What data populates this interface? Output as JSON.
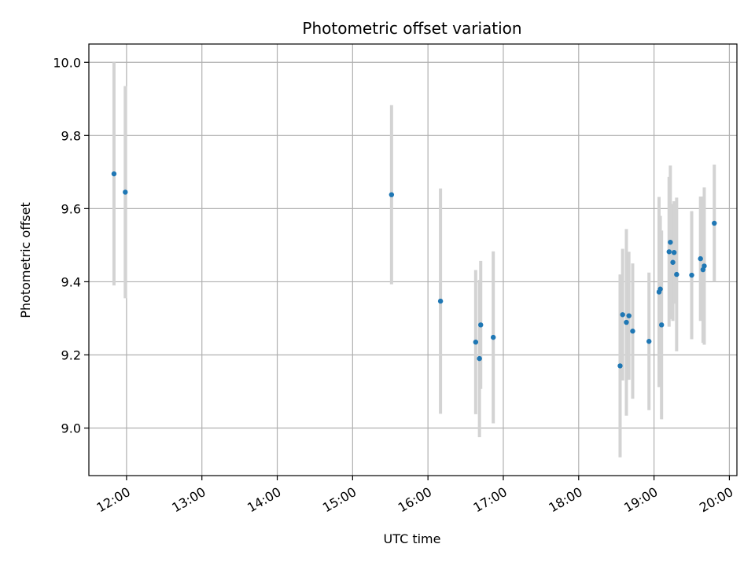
{
  "chart_data": {
    "type": "scatter",
    "title": "Photometric offset variation",
    "xlabel": "UTC time",
    "ylabel": "Photometric offset",
    "x_tick_labels": [
      "12:00",
      "13:00",
      "14:00",
      "15:00",
      "16:00",
      "17:00",
      "18:00",
      "19:00",
      "20:00"
    ],
    "y_tick_labels": [
      "9.0",
      "9.2",
      "9.4",
      "9.6",
      "9.8",
      "10.0"
    ],
    "xlim": [
      "11:30",
      "20:06"
    ],
    "ylim": [
      8.87,
      10.05
    ],
    "grid": true,
    "colors": {
      "point": "#1f77b4",
      "errorbar": "#d3d3d3",
      "grid": "#b0b0b0"
    },
    "points": [
      {
        "x": "11:50",
        "y": 9.695,
        "err": 0.305
      },
      {
        "x": "11:59",
        "y": 9.645,
        "err": 0.29
      },
      {
        "x": "15:31",
        "y": 9.638,
        "err": 0.245
      },
      {
        "x": "16:10",
        "y": 9.347,
        "err": 0.308
      },
      {
        "x": "16:38",
        "y": 9.235,
        "err": 0.197
      },
      {
        "x": "16:41",
        "y": 9.19,
        "err": 0.215
      },
      {
        "x": "16:42",
        "y": 9.282,
        "err": 0.175
      },
      {
        "x": "16:52",
        "y": 9.248,
        "err": 0.235
      },
      {
        "x": "18:33",
        "y": 9.17,
        "err": 0.25
      },
      {
        "x": "18:35",
        "y": 9.31,
        "err": 0.18
      },
      {
        "x": "18:38",
        "y": 9.289,
        "err": 0.255
      },
      {
        "x": "18:40",
        "y": 9.307,
        "err": 0.175
      },
      {
        "x": "18:43",
        "y": 9.265,
        "err": 0.185
      },
      {
        "x": "18:56",
        "y": 9.237,
        "err": 0.188
      },
      {
        "x": "19:04",
        "y": 9.372,
        "err": 0.26
      },
      {
        "x": "19:05",
        "y": 9.38,
        "err": 0.2
      },
      {
        "x": "19:06",
        "y": 9.282,
        "err": 0.258
      },
      {
        "x": "19:12",
        "y": 9.482,
        "err": 0.205
      },
      {
        "x": "19:13",
        "y": 9.508,
        "err": 0.21
      },
      {
        "x": "19:15",
        "y": 9.453,
        "err": 0.16
      },
      {
        "x": "19:16",
        "y": 9.48,
        "err": 0.14
      },
      {
        "x": "19:18",
        "y": 9.42,
        "err": 0.21
      },
      {
        "x": "19:30",
        "y": 9.418,
        "err": 0.175
      },
      {
        "x": "19:37",
        "y": 9.463,
        "err": 0.17
      },
      {
        "x": "19:39",
        "y": 9.433,
        "err": 0.2
      },
      {
        "x": "19:40",
        "y": 9.443,
        "err": 0.215
      },
      {
        "x": "19:48",
        "y": 9.56,
        "err": 0.16
      }
    ]
  }
}
